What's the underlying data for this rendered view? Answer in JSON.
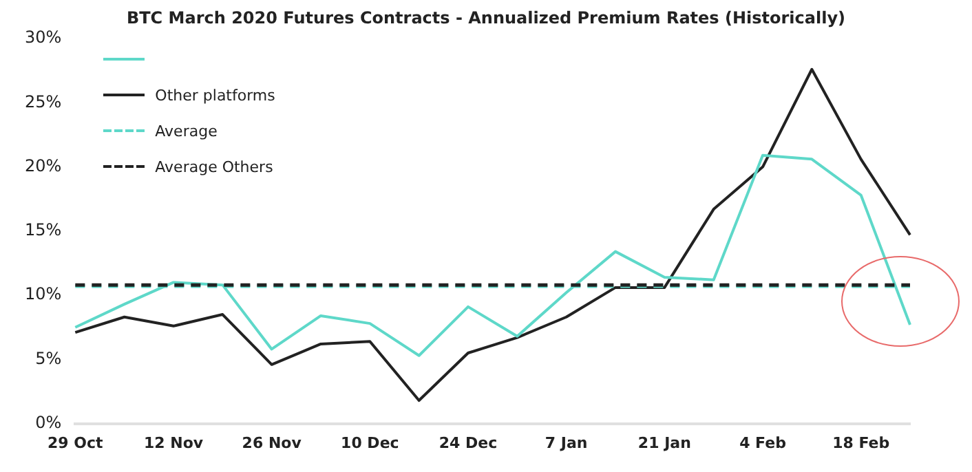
{
  "chart_data": {
    "type": "line",
    "title": "BTC March 2020 Futures Contracts - Annualized Premium Rates (Historically)",
    "categories": [
      "29 Oct",
      null,
      "12 Nov",
      null,
      "26 Nov",
      null,
      "10 Dec",
      null,
      "24 Dec",
      null,
      "7 Jan",
      null,
      "21 Jan",
      null,
      "4 Feb",
      null,
      "18 Feb",
      null
    ],
    "series": [
      {
        "color": "#5ed8c9",
        "values": [
          7.5,
          9.3,
          11.0,
          10.8,
          5.8,
          8.4,
          7.8,
          5.3,
          9.1,
          6.8,
          10.2,
          13.4,
          11.4,
          11.2,
          20.9,
          20.6,
          17.8,
          7.7
        ]
      },
      {
        "name": "Other platforms",
        "color": "#222222",
        "values": [
          7.1,
          8.3,
          7.6,
          8.5,
          4.6,
          6.2,
          6.4,
          1.8,
          5.5,
          6.7,
          8.3,
          10.6,
          10.6,
          16.7,
          20.0,
          27.6,
          20.6,
          14.7
        ]
      }
    ],
    "ref_lines": [
      {
        "axis": "y",
        "value": 10.7,
        "label": "Average",
        "color": "#5ed8c9",
        "line_style": "dashed"
      },
      {
        "axis": "y",
        "value": 10.8,
        "label": "Average Others",
        "color": "#222222",
        "line_style": "dashed"
      }
    ],
    "ylim": [
      0,
      30
    ],
    "yticks": [
      {
        "value": 0,
        "label": "0%"
      },
      {
        "value": 5,
        "label": "5%"
      },
      {
        "value": 10,
        "label": "10%"
      },
      {
        "value": 15,
        "label": "15%"
      },
      {
        "value": 20,
        "label": "20%"
      },
      {
        "value": 25,
        "label": "25%"
      },
      {
        "value": 30,
        "label": "30%"
      }
    ],
    "grid": false,
    "legend": "top left",
    "marker": "none",
    "line_style": "solid"
  }
}
